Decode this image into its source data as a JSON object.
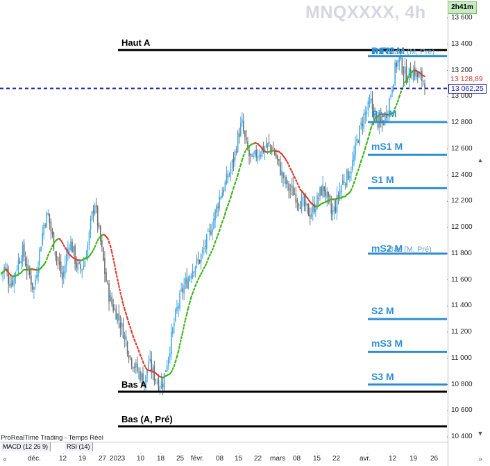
{
  "header": {
    "instrument_title": "MNQXXXX, 4h",
    "countdown": "2h41m"
  },
  "footer": {
    "brand": "ProRealTime Trading - Temps Réel",
    "indicators": [
      "MACD (12 26 9)",
      "RSI (14)"
    ],
    "nav_left": "«",
    "nav_right": "»"
  },
  "price_tags": {
    "last_price": "13 128,89",
    "dashed_level": "13 062,25"
  },
  "colors": {
    "up_candle": "#3fa9e6",
    "down_candle": "#6c6c6c",
    "ma_up": "#3cb517",
    "ma_down": "#e03a2f",
    "dashed_line": "#1f1fa8",
    "pivot_line": "#2d8fd2",
    "annual_line": "#000000"
  },
  "chart_data": {
    "type": "candlestick",
    "title": "MNQXXXX, 4h",
    "y_axis": {
      "position": "right",
      "ticks": [
        10400,
        10600,
        10800,
        11000,
        11200,
        11400,
        11600,
        11800,
        12000,
        12200,
        12400,
        12600,
        12800,
        13000,
        13200,
        13400,
        13600
      ],
      "tick_labels": [
        "10 400",
        "10 600",
        "10 800",
        "11 000",
        "11 200",
        "11 400",
        "11 600",
        "11 800",
        "12 000",
        "12 200",
        "12 400",
        "12 600",
        "12 800",
        "13 000",
        "13 200",
        "13 400",
        "13 600"
      ],
      "range": [
        10310,
        13700
      ]
    },
    "x_axis": {
      "tick_labels": [
        "déc.",
        "12",
        "19",
        "27",
        "2023",
        "10",
        "18",
        "25",
        "févr.",
        "08",
        "15",
        "22",
        "mars",
        "08",
        "15",
        "22",
        "avr.",
        "12",
        "19",
        "26"
      ]
    },
    "levels": [
      {
        "label": "Haut A",
        "value": 13355,
        "style": "annual"
      },
      {
        "label": "Bas A",
        "value": 10745,
        "style": "annual"
      },
      {
        "label": "Bas (A, Pré)",
        "value": 10480,
        "style": "annual"
      },
      {
        "label": "R1 M",
        "value": 13310,
        "style": "pivot"
      },
      {
        "label": "mR1 M",
        "value": 13310,
        "style": "pivot"
      },
      {
        "label": "Haut (M, Pré)",
        "value": 13310,
        "style": "pivot-faint"
      },
      {
        "label": "Piv M",
        "value": 12805,
        "style": "pivot"
      },
      {
        "label": "mS1 M",
        "value": 12555,
        "style": "pivot"
      },
      {
        "label": "S1 M",
        "value": 12300,
        "style": "pivot"
      },
      {
        "label": "mS2 M",
        "value": 11800,
        "style": "pivot"
      },
      {
        "label": "Bas (M, Pré)",
        "value": 11800,
        "style": "pivot-faint"
      },
      {
        "label": "S2 M",
        "value": 11300,
        "style": "pivot"
      },
      {
        "label": "mS3 M",
        "value": 11050,
        "style": "pivot"
      },
      {
        "label": "S3 M",
        "value": 10800,
        "style": "pivot"
      }
    ],
    "dashed_level": 13062.25,
    "last_price": 13128.89,
    "price_path": [
      11650,
      11700,
      11600,
      11580,
      11680,
      11760,
      11820,
      11700,
      11620,
      11520,
      11700,
      11880,
      12050,
      12100,
      11950,
      11820,
      11720,
      11600,
      11760,
      11900,
      11820,
      11700,
      11680,
      11720,
      11850,
      12050,
      12200,
      12000,
      11820,
      11620,
      11480,
      11400,
      11350,
      11280,
      11200,
      11100,
      11000,
      10950,
      10900,
      10860,
      10800,
      10980,
      10900,
      10850,
      10800,
      10820,
      10950,
      11100,
      11250,
      11380,
      11480,
      11560,
      11600,
      11680,
      11720,
      11740,
      11800,
      11880,
      11950,
      12050,
      12150,
      12250,
      12300,
      12380,
      12450,
      12550,
      12700,
      12800,
      12650,
      12550,
      12500,
      12560,
      12580,
      12600,
      12620,
      12620,
      12580,
      12500,
      12420,
      12350,
      12300,
      12280,
      12250,
      12200,
      12180,
      12140,
      12100,
      12150,
      12200,
      12280,
      12300,
      12200,
      12100,
      12150,
      12250,
      12350,
      12380,
      12420,
      12500,
      12650,
      12750,
      12850,
      12900,
      12950,
      12850,
      12800,
      12780,
      12850,
      12950,
      13100,
      13250,
      13280,
      13200,
      13150,
      13180,
      13200,
      13150,
      13140,
      13120
    ]
  }
}
